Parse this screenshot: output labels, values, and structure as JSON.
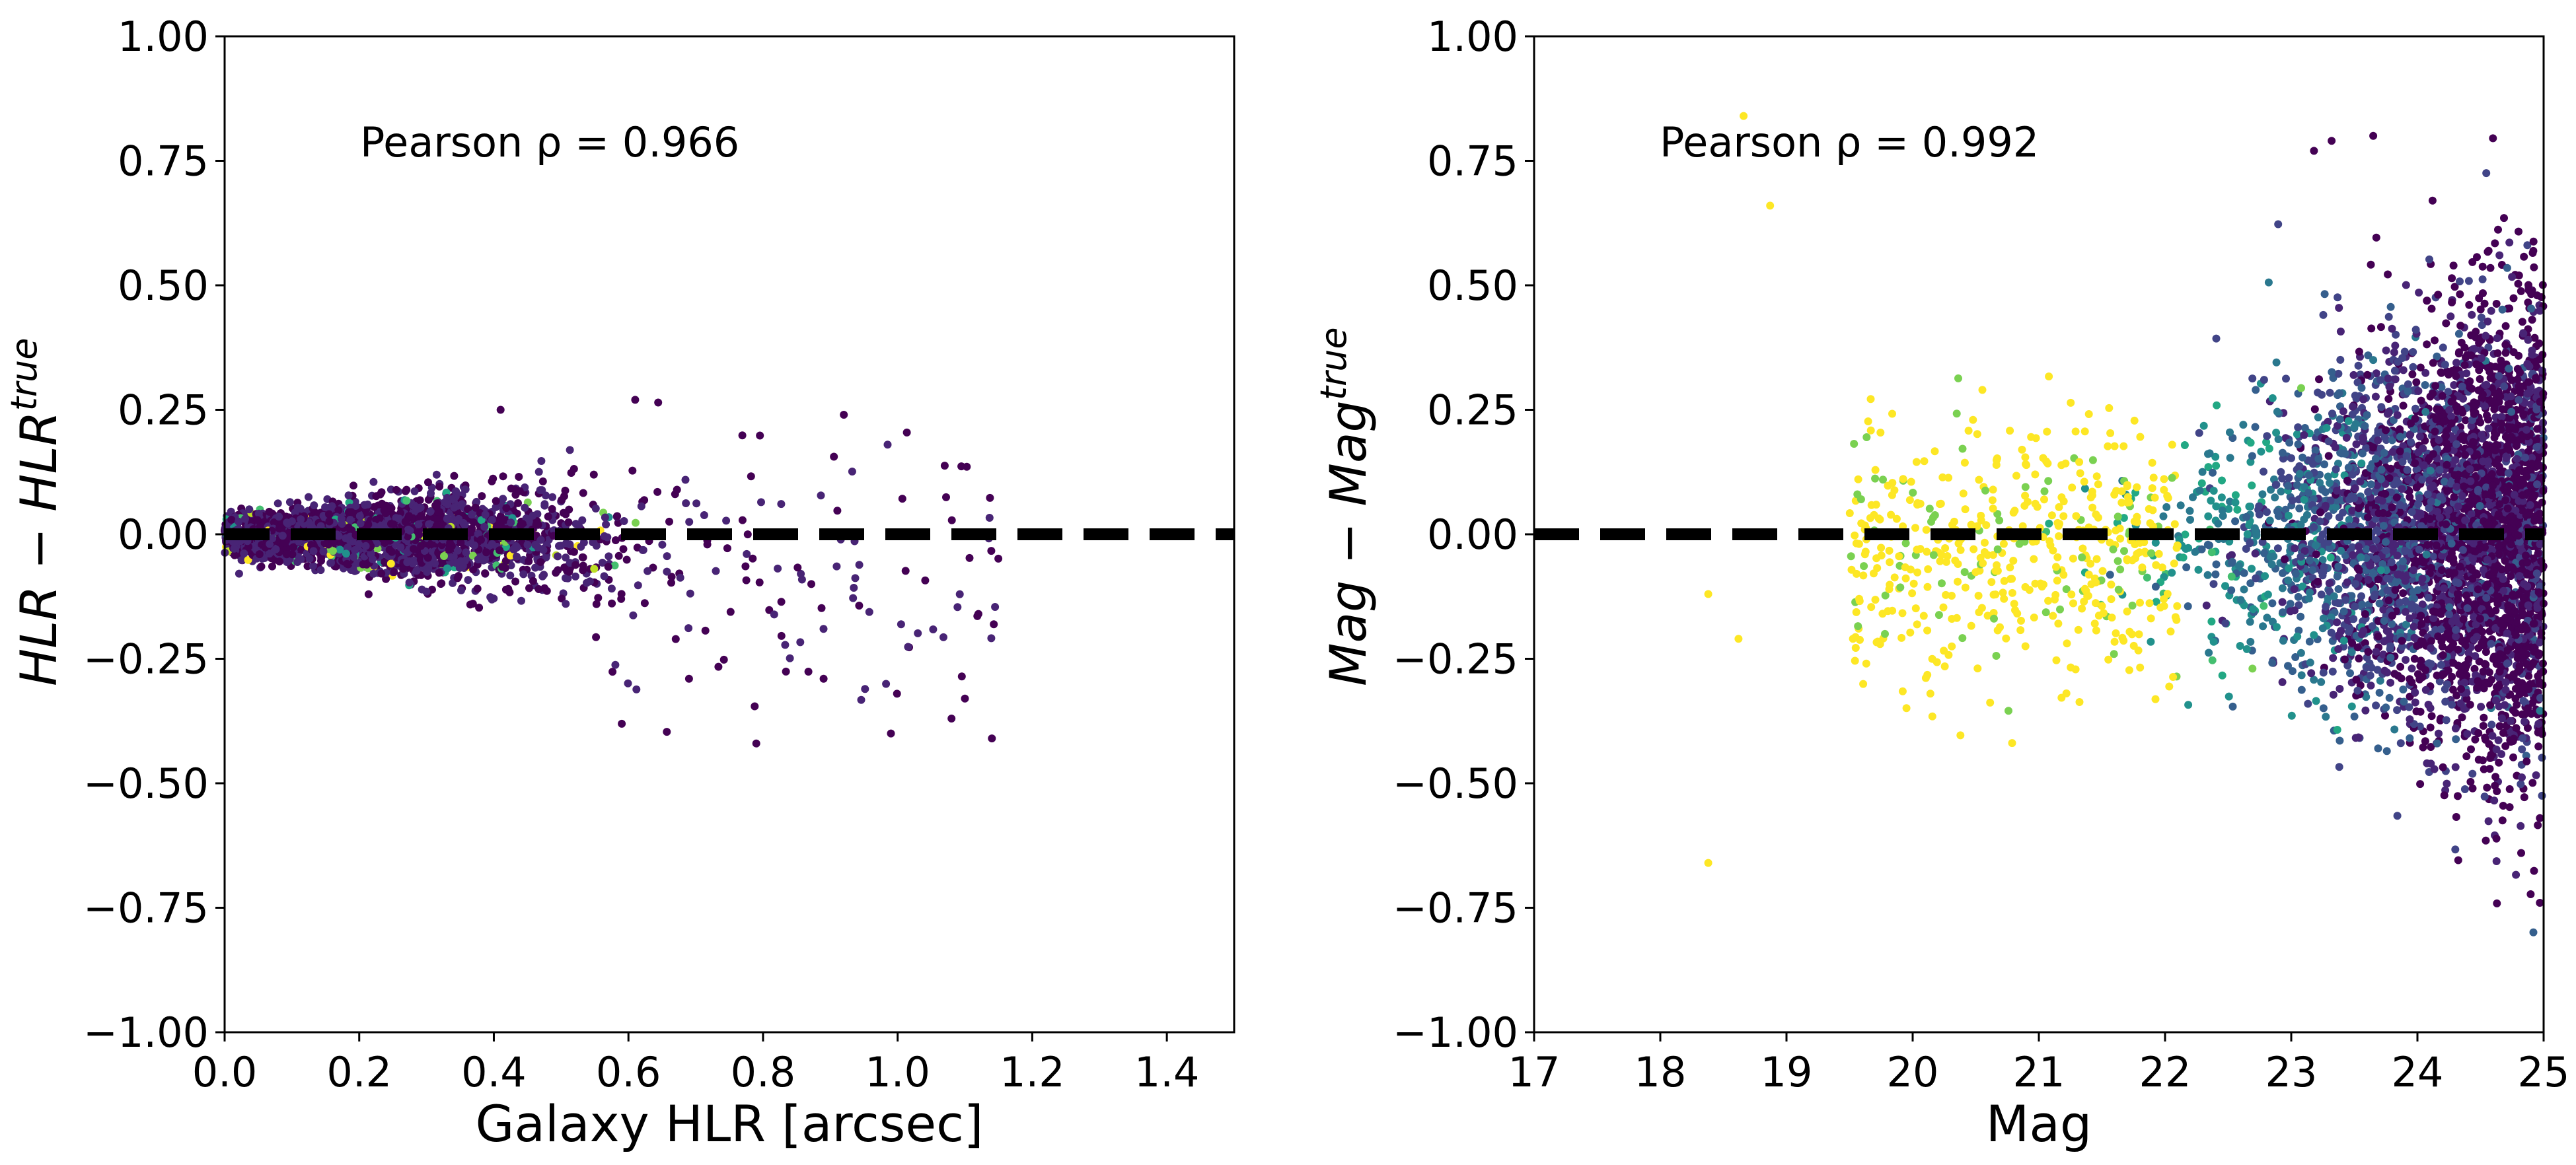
{
  "chart_data": [
    {
      "type": "scatter",
      "title": "",
      "xlabel": "Galaxy HLR [arcsec]",
      "ylabel": "HLR − HLR",
      "ylabel_superscript": "true",
      "xlim": [
        0.0,
        1.5
      ],
      "ylim": [
        -1.0,
        1.0
      ],
      "xticks": [
        "0.0",
        "0.2",
        "0.4",
        "0.6",
        "0.8",
        "1.0",
        "1.2",
        "1.4"
      ],
      "yticks": [
        "1.00",
        "0.75",
        "0.50",
        "0.25",
        "0.00",
        "−0.25",
        "−0.50",
        "−0.75",
        "−1.00"
      ],
      "annotation": "Pearson ρ = 0.966",
      "reference_line": {
        "y": 0.0,
        "style": "dashed",
        "color": "#000000"
      },
      "grid": false,
      "colormap": "viridis",
      "points_summary": {
        "x_range": [
          0.02,
          1.14
        ],
        "dense_band": {
          "x": [
            0.05,
            0.55
          ],
          "y_spread": [
            -0.08,
            0.1
          ]
        },
        "outliers": [
          {
            "x": 0.41,
            "y": 0.25
          },
          {
            "x": 0.61,
            "y": 0.27
          },
          {
            "x": 0.92,
            "y": 0.24
          },
          {
            "x": 0.79,
            "y": -0.42
          },
          {
            "x": 0.99,
            "y": -0.4
          },
          {
            "x": 1.08,
            "y": -0.37
          },
          {
            "x": 1.14,
            "y": -0.41
          },
          {
            "x": 1.1,
            "y": -0.33
          },
          {
            "x": 0.69,
            "y": -0.29
          },
          {
            "x": 0.89,
            "y": -0.29
          },
          {
            "x": 1.12,
            "y": -0.16
          }
        ]
      }
    },
    {
      "type": "scatter",
      "title": "",
      "xlabel": "Mag",
      "ylabel": "Mag − Mag",
      "ylabel_superscript": "true",
      "xlim": [
        17,
        25
      ],
      "ylim": [
        -1.0,
        1.0
      ],
      "xticks": [
        "17",
        "18",
        "19",
        "20",
        "21",
        "22",
        "23",
        "24",
        "25"
      ],
      "yticks": [
        "1.00",
        "0.75",
        "0.50",
        "0.25",
        "0.00",
        "−0.25",
        "−0.50",
        "−0.75",
        "−1.00"
      ],
      "annotation": "Pearson ρ = 0.992",
      "reference_line": {
        "y": 0.0,
        "style": "dashed",
        "color": "#000000"
      },
      "grid": false,
      "colormap": "viridis",
      "points_summary": {
        "x_range": [
          18.3,
          25.0
        ],
        "bright_yellow_region": {
          "x": [
            19.0,
            22.0
          ]
        },
        "dense_purple_region": {
          "x": [
            23.5,
            25.0
          ],
          "y_spread": [
            -0.45,
            0.45
          ]
        },
        "outliers": [
          {
            "x": 18.66,
            "y": 0.84
          },
          {
            "x": 18.87,
            "y": 0.66
          },
          {
            "x": 18.38,
            "y": -0.66
          },
          {
            "x": 23.18,
            "y": 0.77
          },
          {
            "x": 23.32,
            "y": 0.79
          },
          {
            "x": 23.65,
            "y": 0.8
          },
          {
            "x": 24.12,
            "y": 0.67
          },
          {
            "x": 24.97,
            "y": -0.74
          },
          {
            "x": 24.97,
            "y": -0.57
          },
          {
            "x": 18.62,
            "y": -0.21
          },
          {
            "x": 18.38,
            "y": -0.12
          }
        ]
      }
    }
  ]
}
